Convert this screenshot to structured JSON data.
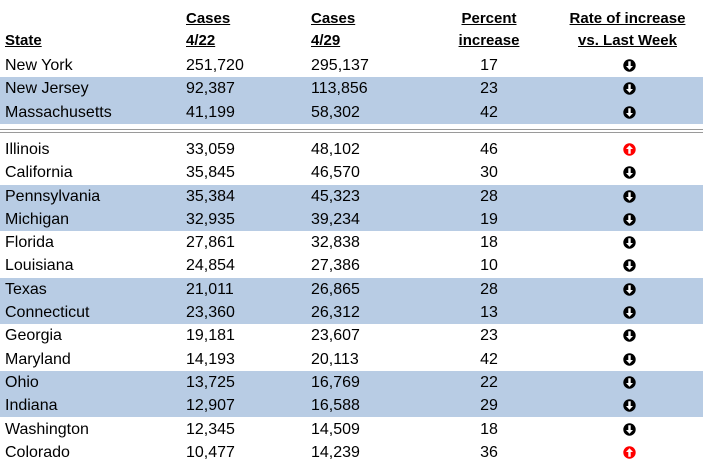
{
  "header": {
    "state": "State",
    "cases_a_line1": "Cases",
    "cases_a_line2": "4/22",
    "cases_b_line1": "Cases",
    "cases_b_line2": "4/29",
    "pct_line1": "Percent",
    "pct_line2": "increase",
    "rate_line1": "Rate of increase",
    "rate_line2": "vs. Last Week"
  },
  "colors": {
    "shade": "#b8cce4",
    "down_arrow": "#000000",
    "up_arrow": "#ff0000"
  },
  "rows": [
    {
      "state": "New York",
      "cases_a": "251,720",
      "cases_b": "295,137",
      "pct": "17",
      "trend": "down-arrow-icon"
    },
    {
      "state": "New Jersey",
      "cases_a": "92,387",
      "cases_b": "113,856",
      "pct": "23",
      "trend": "down-arrow-icon"
    },
    {
      "state": "Massachusetts",
      "cases_a": "41,199",
      "cases_b": "58,302",
      "pct": "42",
      "trend": "down-arrow-icon"
    },
    {
      "state": "Illinois",
      "cases_a": "33,059",
      "cases_b": "48,102",
      "pct": "46",
      "trend": "up-arrow-icon"
    },
    {
      "state": "California",
      "cases_a": "35,845",
      "cases_b": "46,570",
      "pct": "30",
      "trend": "down-arrow-icon"
    },
    {
      "state": "Pennsylvania",
      "cases_a": "35,384",
      "cases_b": "45,323",
      "pct": "28",
      "trend": "down-arrow-icon"
    },
    {
      "state": "Michigan",
      "cases_a": "32,935",
      "cases_b": "39,234",
      "pct": "19",
      "trend": "down-arrow-icon"
    },
    {
      "state": "Florida",
      "cases_a": "27,861",
      "cases_b": "32,838",
      "pct": "18",
      "trend": "down-arrow-icon"
    },
    {
      "state": "Louisiana",
      "cases_a": "24,854",
      "cases_b": "27,386",
      "pct": "10",
      "trend": "down-arrow-icon"
    },
    {
      "state": "Texas",
      "cases_a": "21,011",
      "cases_b": "26,865",
      "pct": "28",
      "trend": "down-arrow-icon"
    },
    {
      "state": "Connecticut",
      "cases_a": "23,360",
      "cases_b": "26,312",
      "pct": "13",
      "trend": "down-arrow-icon"
    },
    {
      "state": "Georgia",
      "cases_a": "19,181",
      "cases_b": "23,607",
      "pct": "23",
      "trend": "down-arrow-icon"
    },
    {
      "state": "Maryland",
      "cases_a": "14,193",
      "cases_b": "20,113",
      "pct": "42",
      "trend": "down-arrow-icon"
    },
    {
      "state": "Ohio",
      "cases_a": "13,725",
      "cases_b": "16,769",
      "pct": "22",
      "trend": "down-arrow-icon"
    },
    {
      "state": "Indiana",
      "cases_a": "12,907",
      "cases_b": "16,588",
      "pct": "29",
      "trend": "down-arrow-icon"
    },
    {
      "state": "Washington",
      "cases_a": "12,345",
      "cases_b": "14,509",
      "pct": "18",
      "trend": "down-arrow-icon"
    },
    {
      "state": "Colorado",
      "cases_a": "10,477",
      "cases_b": "14,239",
      "pct": "36",
      "trend": "up-arrow-icon"
    }
  ]
}
